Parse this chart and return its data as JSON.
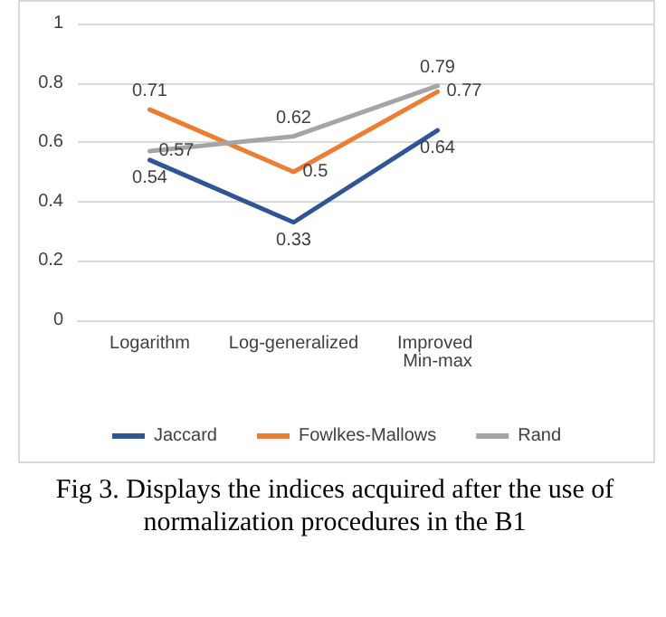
{
  "chart_data": {
    "type": "line",
    "categories": [
      "Logarithm",
      "Log-generalized",
      "Improved Min-max",
      null
    ],
    "series": [
      {
        "name": "Jaccard",
        "color": "#2f5597",
        "values": [
          0.54,
          0.33,
          0.64,
          null
        ]
      },
      {
        "name": "Fowlkes-Mallows",
        "color": "#ed7d31",
        "values": [
          0.71,
          0.5,
          0.77,
          null
        ]
      },
      {
        "name": "Rand",
        "color": "#a5a5a5",
        "values": [
          0.57,
          0.62,
          0.79,
          null
        ]
      }
    ],
    "ylim": [
      0,
      1
    ],
    "yticks": [
      0,
      0.2,
      0.4,
      0.6,
      0.8,
      1
    ],
    "grid": "y",
    "legend": "bottom",
    "data_labels": true,
    "marker": "none",
    "line_style": "solid",
    "annotations": [
      "Fig 3. Displays the indices acquired after the use of normalization procedures in the B1"
    ]
  }
}
